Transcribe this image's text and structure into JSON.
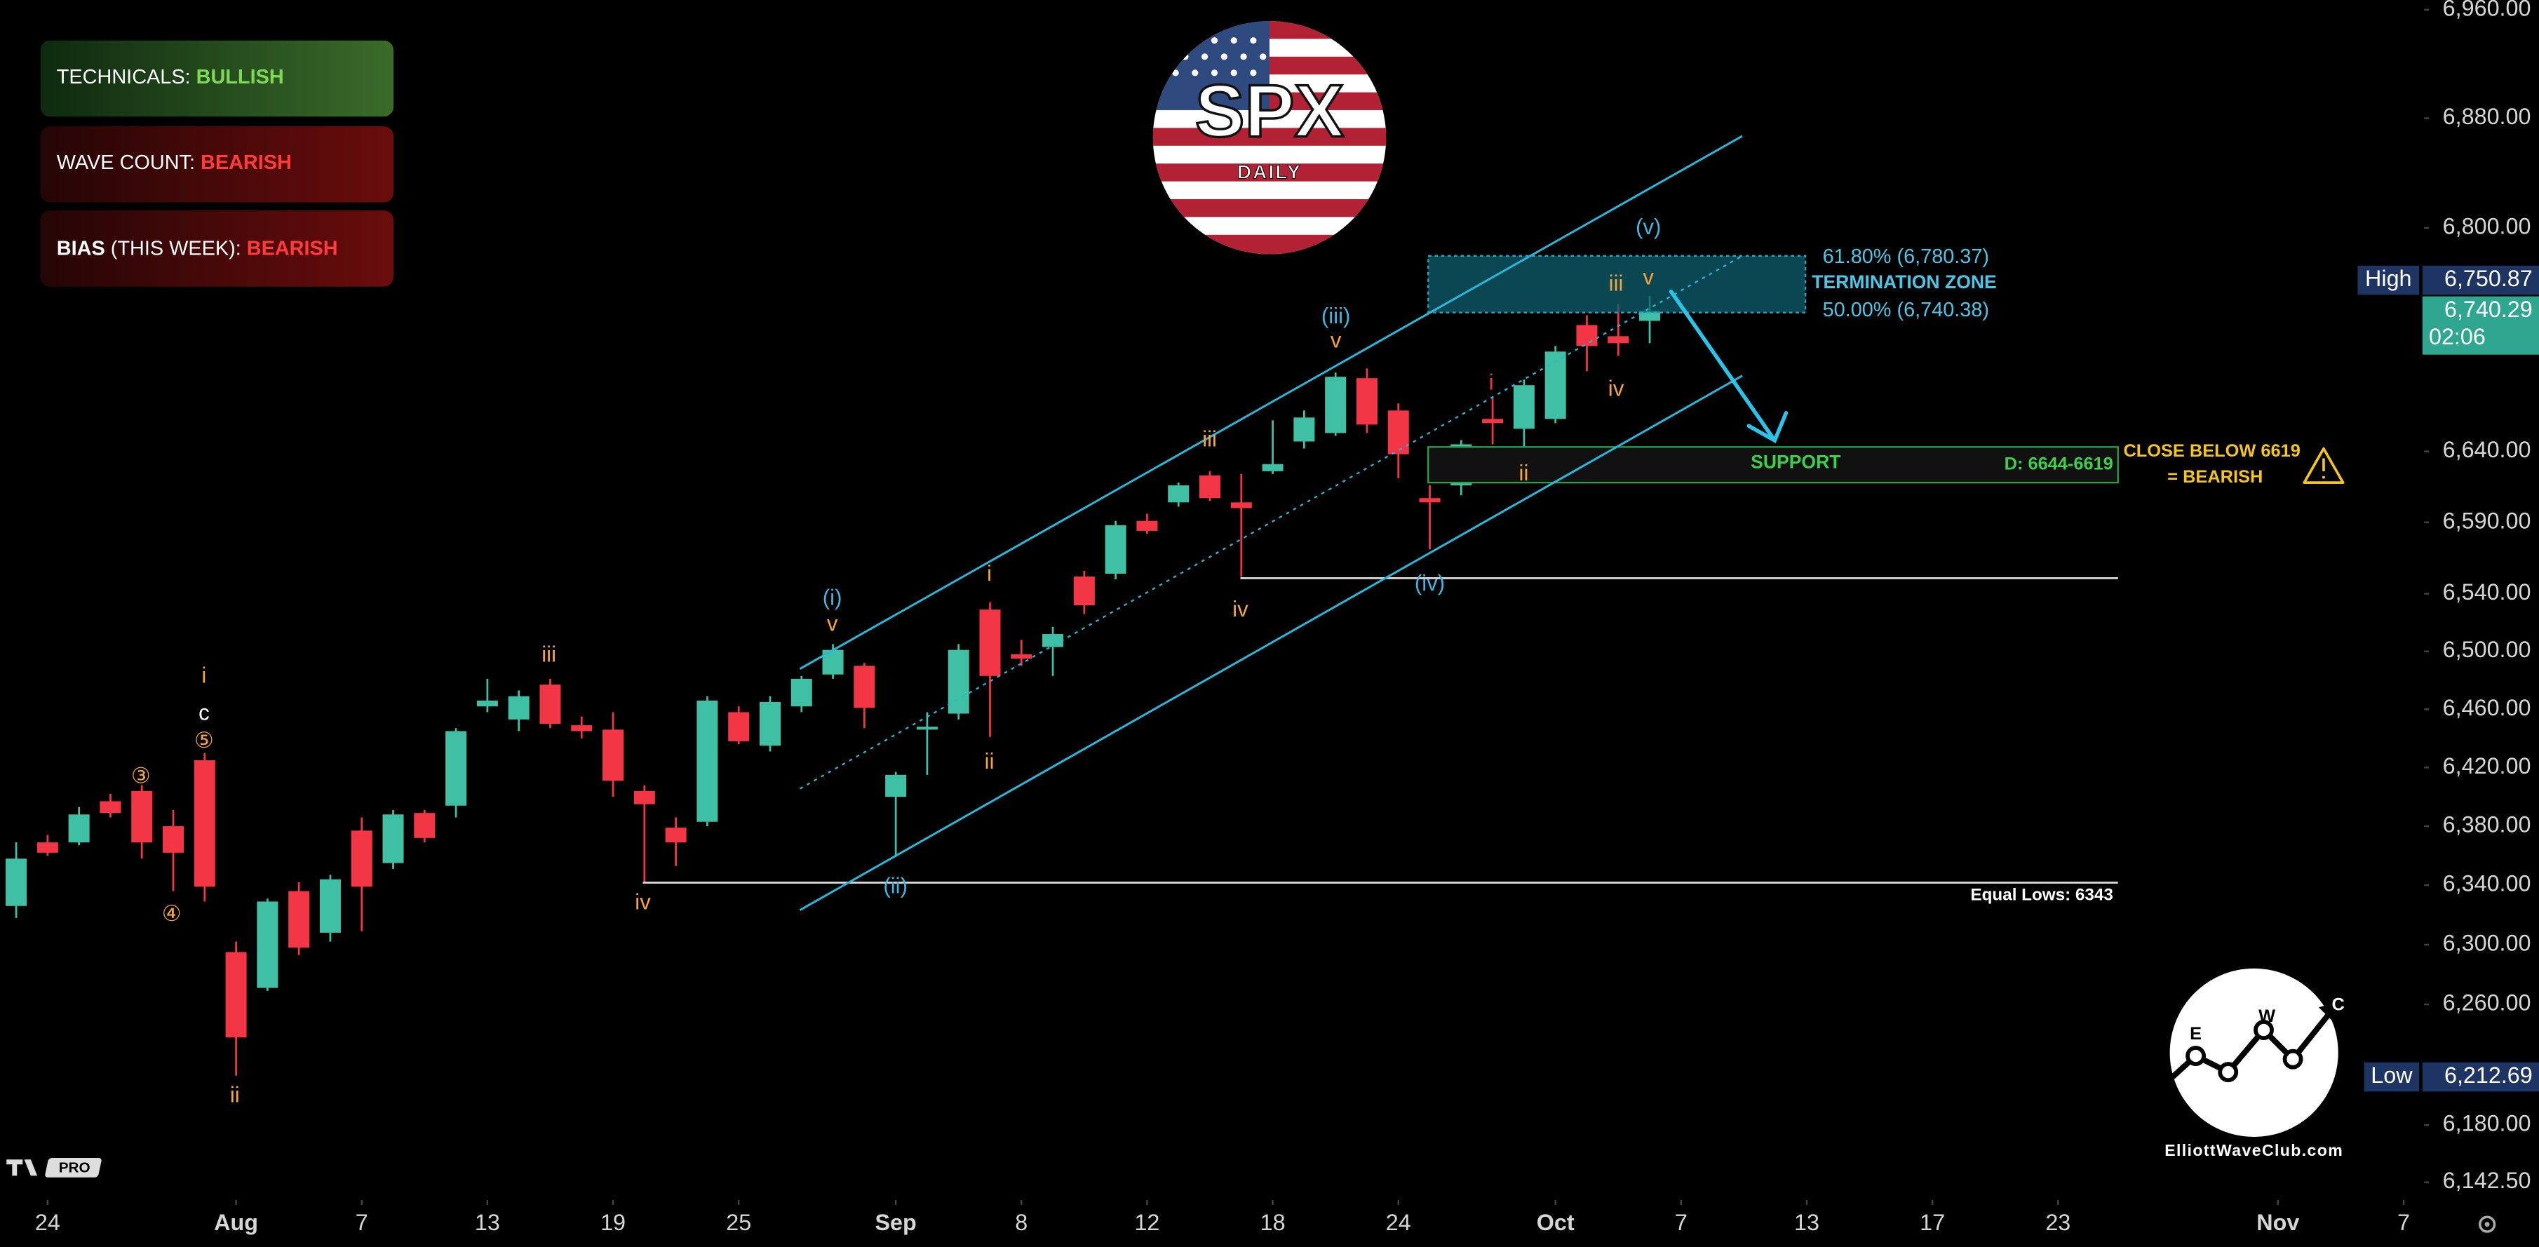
{
  "chart_data": {
    "type": "candlestick",
    "x": [
      0,
      1,
      2,
      3,
      4,
      5,
      6,
      7,
      8,
      9,
      10,
      11,
      12,
      13,
      14,
      15,
      16,
      17,
      18,
      19,
      20,
      21,
      22,
      23,
      24,
      25,
      26,
      27,
      28,
      29,
      30,
      31,
      32,
      33,
      34,
      35,
      36,
      37,
      38,
      39,
      40,
      41,
      42,
      43,
      44,
      45,
      46,
      47,
      48,
      49,
      50,
      51,
      52
    ],
    "open": [
      6326,
      6369,
      6369,
      6397,
      6404,
      6380,
      6425,
      6295,
      6271,
      6336,
      6308,
      6377,
      6355,
      6389,
      6394,
      6462,
      6453,
      6477,
      6449,
      6446,
      6404,
      6379,
      6383,
      6458,
      6435,
      6462,
      6484,
      6490,
      6400,
      6446,
      6457,
      6529,
      6498,
      6503,
      6552,
      6554,
      6591,
      6604,
      6623,
      6604,
      6626,
      6647,
      6653,
      6692,
      6669,
      6607,
      6616,
      6663,
      6656,
      6663,
      6730,
      6722,
      6733
    ],
    "high": [
      6369,
      6374,
      6393,
      6402,
      6408,
      6391,
      6430,
      6302,
      6331,
      6342,
      6347,
      6386,
      6391,
      6391,
      6447,
      6481,
      6473,
      6481,
      6455,
      6458,
      6408,
      6386,
      6469,
      6462,
      6469,
      6483,
      6505,
      6492,
      6417,
      6458,
      6505,
      6534,
      6508,
      6517,
      6556,
      6591,
      6596,
      6618,
      6626,
      6624,
      6662,
      6669,
      6696,
      6699,
      6674,
      6616,
      6648,
      6679,
      6691,
      6715,
      6737,
      6745,
      6750.87
    ],
    "low": [
      6318,
      6360,
      6367,
      6386,
      6358,
      6336,
      6329,
      6212.69,
      6269,
      6293,
      6302,
      6309,
      6351,
      6369,
      6386,
      6458,
      6445,
      6447,
      6440,
      6400,
      6342,
      6353,
      6380,
      6436,
      6431,
      6458,
      6481,
      6447,
      6360,
      6415,
      6453,
      6441,
      6490,
      6483,
      6526,
      6550,
      6582,
      6601,
      6605,
      6552,
      6624,
      6642,
      6651,
      6653,
      6621,
      6571,
      6609,
      6645,
      6642,
      6660,
      6697,
      6708,
      6717
    ],
    "close": [
      6358,
      6362,
      6388,
      6389,
      6369,
      6362,
      6339,
      6238,
      6329,
      6298,
      6344,
      6339,
      6388,
      6372,
      6445,
      6466,
      6469,
      6450,
      6445,
      6411,
      6395,
      6369,
      6466,
      6438,
      6465,
      6481,
      6501,
      6461,
      6415,
      6448,
      6501,
      6483,
      6495,
      6512,
      6532,
      6588,
      6584,
      6616,
      6607,
      6600,
      6631,
      6664,
      6693,
      6659,
      6638,
      6604,
      6645,
      6660,
      6687,
      6711,
      6715,
      6717,
      6740.29
    ],
    "up_color": "#3fbfa3",
    "down_color": "#f23645",
    "log_scale": true,
    "xlim": [
      -0.515,
      76.65
    ],
    "xticks": [
      {
        "value": 1,
        "label": "24"
      },
      {
        "value": 7,
        "label": "Aug"
      },
      {
        "value": 11,
        "label": "7"
      },
      {
        "value": 15,
        "label": "13"
      },
      {
        "value": 19,
        "label": "19"
      },
      {
        "value": 23,
        "label": "25"
      },
      {
        "value": 28,
        "label": "Sep"
      },
      {
        "value": 32,
        "label": "8"
      },
      {
        "value": 36,
        "label": "12"
      },
      {
        "value": 40,
        "label": "18"
      },
      {
        "value": 44,
        "label": "24"
      },
      {
        "value": 49,
        "label": "Oct"
      },
      {
        "value": 53,
        "label": "7"
      },
      {
        "value": 57,
        "label": "13"
      },
      {
        "value": 61,
        "label": "17"
      },
      {
        "value": 65,
        "label": "23"
      },
      {
        "value": 72,
        "label": "Nov"
      },
      {
        "value": 76,
        "label": "7"
      }
    ],
    "ylim": [
      6131.9,
      6967.2
    ],
    "yticks": [
      {
        "value": 6960,
        "label": "6,960.00"
      },
      {
        "value": 6880,
        "label": "6,880.00"
      },
      {
        "value": 6800,
        "label": "6,800.00"
      },
      {
        "value": 6640,
        "label": "6,640.00"
      },
      {
        "value": 6590,
        "label": "6,590.00"
      },
      {
        "value": 6540,
        "label": "6,540.00"
      },
      {
        "value": 6500,
        "label": "6,500.00"
      },
      {
        "value": 6460,
        "label": "6,460.00"
      },
      {
        "value": 6420,
        "label": "6,420.00"
      },
      {
        "value": 6380,
        "label": "6,380.00"
      },
      {
        "value": 6340,
        "label": "6,340.00"
      },
      {
        "value": 6300,
        "label": "6,300.00"
      },
      {
        "value": 6260,
        "label": "6,260.00"
      },
      {
        "value": 6180,
        "label": "6,180.00"
      },
      {
        "value": 6142.5,
        "label": "6,142.50"
      }
    ],
    "grid": false,
    "price_labels": {
      "high_title": "High",
      "high": "6,750.87",
      "last": "6,740.29",
      "countdown": "02:06",
      "low_title": "Low",
      "low": "6,212.69"
    },
    "annotations": [
      "i",
      "c",
      "⑤",
      "③",
      "④",
      "ii",
      "iii",
      "iv",
      "(i)",
      "v",
      "(ii)",
      "i",
      "ii",
      "iii",
      "iv",
      "(iii)",
      "v",
      "(iv)",
      "i",
      "ii",
      "iii",
      "iv",
      "v",
      "(v)"
    ]
  },
  "overlay": {
    "fib_top": "61.80% (6,780.37)",
    "fib_title": "TERMINATION ZONE",
    "fib_bottom": "50.00% (6,740.38)",
    "support": "SUPPORT",
    "support_range": "D: 6644-6619",
    "equal_lows": "Equal Lows: 6343",
    "warning_1": "CLOSE BELOW 6619",
    "warning_2": "= BEARISH"
  },
  "panels": [
    {
      "parts": [
        "TECHNICALS: ",
        "BULLISH"
      ]
    },
    {
      "parts": [
        "WAVE COUNT: ",
        "BEARISH"
      ]
    },
    {
      "parts": [
        "BIAS",
        " (THIS WEEK): ",
        "BEARISH"
      ]
    }
  ],
  "logos": {
    "spx": "SPX",
    "spx_sub": "DAILY",
    "ewc_letters": [
      "E",
      "W",
      "C"
    ],
    "ewc_url": "ElliottWaveClub.com",
    "tv_badge": "PRO"
  }
}
